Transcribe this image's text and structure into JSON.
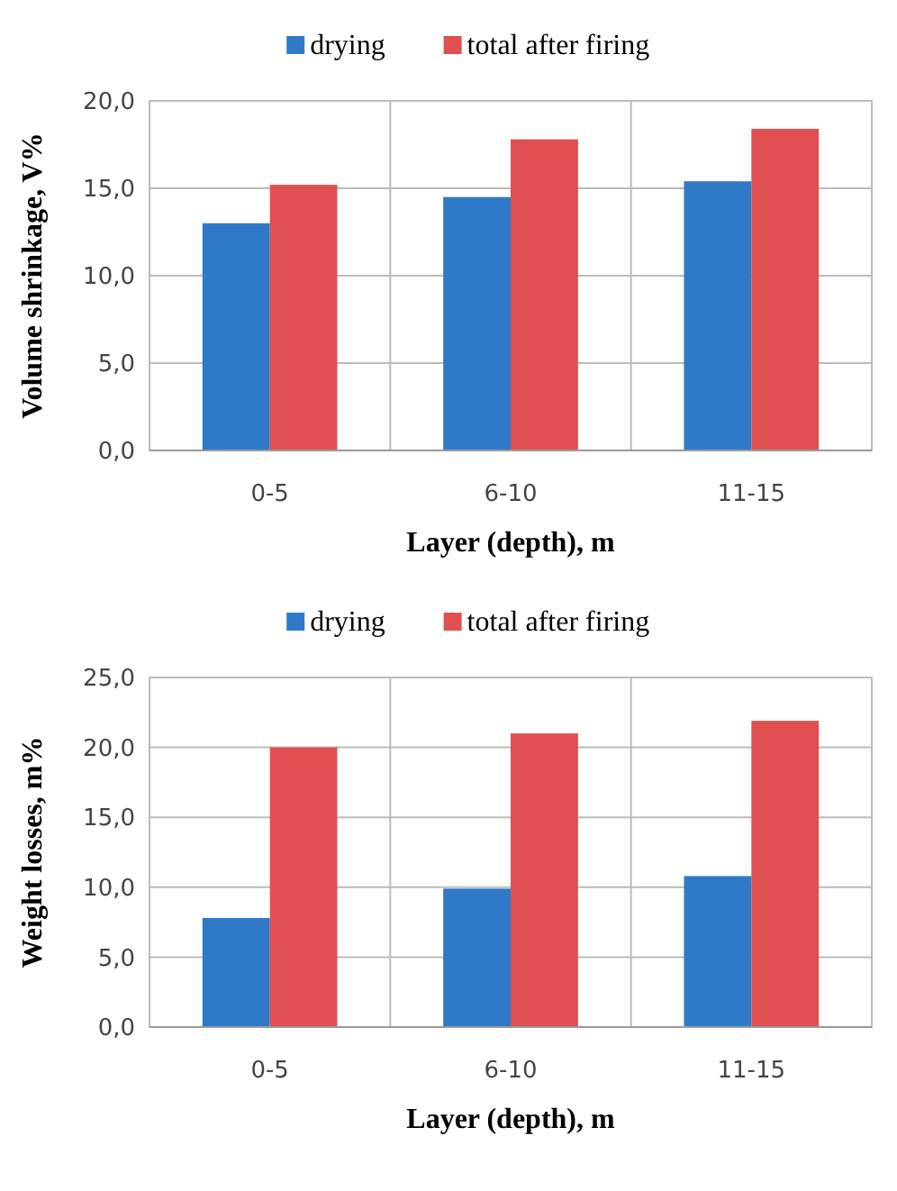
{
  "chart_data": [
    {
      "type": "bar",
      "categories": [
        "0-5",
        "6-10",
        "11-15"
      ],
      "xlabel": "Layer (depth), m",
      "ylabel": "Volume shrinkage, V%",
      "series": [
        {
          "name": "drying",
          "color": "#2f7ac8",
          "values": [
            13.0,
            14.5,
            15.4
          ]
        },
        {
          "name": "total after firing",
          "color": "#e05050",
          "values": [
            15.2,
            17.8,
            18.4
          ]
        }
      ],
      "ylim": [
        0,
        20
      ],
      "yticks": [
        {
          "value": 0,
          "label": "0,0"
        },
        {
          "value": 5,
          "label": "5,0"
        },
        {
          "value": 10,
          "label": "10,0"
        },
        {
          "value": 15,
          "label": "15,0"
        },
        {
          "value": 20,
          "label": "20,0"
        }
      ],
      "grid": true,
      "legend": "top"
    },
    {
      "type": "bar",
      "categories": [
        "0-5",
        "6-10",
        "11-15"
      ],
      "xlabel": "Layer (depth), m",
      "ylabel": "Weight losses, m%",
      "series": [
        {
          "name": "drying",
          "color": "#2f7ac8",
          "values": [
            7.8,
            9.9,
            10.8
          ]
        },
        {
          "name": "total after firing",
          "color": "#e05050",
          "values": [
            20.0,
            21.0,
            21.9
          ]
        }
      ],
      "ylim": [
        0,
        25
      ],
      "yticks": [
        {
          "value": 0,
          "label": "0,0"
        },
        {
          "value": 5,
          "label": "5,0"
        },
        {
          "value": 10,
          "label": "10,0"
        },
        {
          "value": 15,
          "label": "15,0"
        },
        {
          "value": 20,
          "label": "20,0"
        },
        {
          "value": 25,
          "label": "25,0"
        }
      ],
      "grid": true,
      "legend": "top"
    }
  ]
}
